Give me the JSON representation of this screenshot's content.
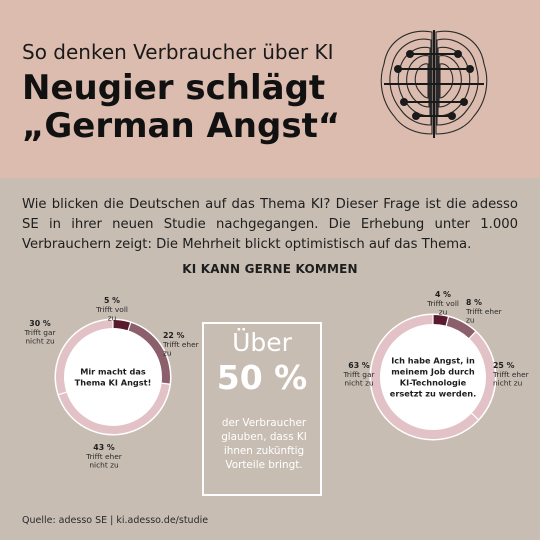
{
  "header": {
    "kicker": "So denken Verbraucher über KI",
    "headline_line1": "Neugier schlägt",
    "headline_line2": "„German Angst“"
  },
  "intro": "Wie blicken die Deutschen auf das Thema KI? Dieser Frage ist die adesso SE in ihrer neuen Studie nachgegangen. Die Erhebung unter 1.000 Verbrauchern zeigt: Die Mehrheit blickt optimistisch auf das Thema.",
  "section_title": "KI KANN GERNE KOMMEN",
  "stat": {
    "pre": "Über",
    "value": "50 %",
    "text": "der Verbraucher glauben, dass KI ihnen zukünftig Vorteile bringt."
  },
  "footer": "Quelle: adesso SE | ki.adesso.de/studie",
  "colors": {
    "header_bg": "#dcbcaf",
    "body_bg": "#c7bdb3",
    "dark": "#5a1a2e",
    "medium": "#8c5f6c",
    "light": "#e2c2c6"
  },
  "chart_data": [
    {
      "type": "pie",
      "center_label": "Mir macht das Thema KI Angst!",
      "categories": [
        "Trifft voll zu",
        "Trifft eher zu",
        "Trifft eher nicht zu",
        "Trifft gar nicht zu"
      ],
      "values": [
        5,
        22,
        43,
        30
      ],
      "value_labels": [
        "5 %",
        "22 %",
        "43 %",
        "30 %"
      ],
      "colors": [
        "#5a1a2e",
        "#8c5f6c",
        "#e2c2c6",
        "#e2c2c6"
      ]
    },
    {
      "type": "pie",
      "center_label": "Ich habe Angst, in meinem Job durch KI-Technologie ersetzt zu werden.",
      "categories": [
        "Trifft voll zu",
        "Trifft eher zu",
        "Trifft eher nicht zu",
        "Trifft gar nicht zu"
      ],
      "values": [
        4,
        8,
        25,
        63
      ],
      "value_labels": [
        "4 %",
        "8 %",
        "25 %",
        "63 %"
      ],
      "colors": [
        "#5a1a2e",
        "#8c5f6c",
        "#e2c2c6",
        "#e2c2c6"
      ]
    }
  ]
}
